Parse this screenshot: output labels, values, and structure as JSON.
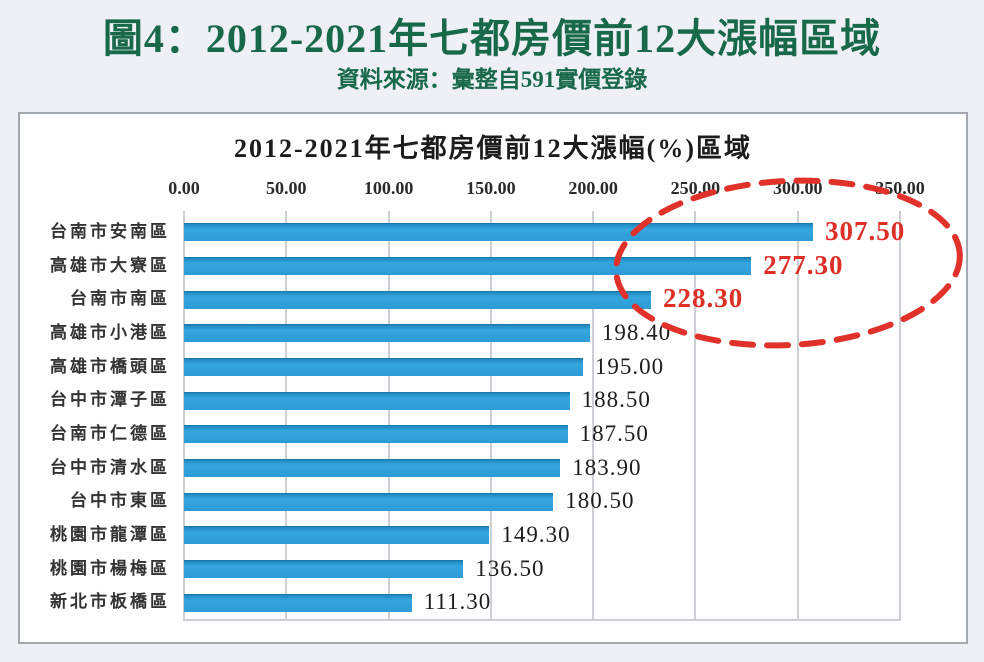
{
  "page": {
    "title": "圖4：2012-2021年七都房價前12大漲幅區域",
    "subtitle": "資料來源：彙整自591實價登錄",
    "title_color": "#17694a",
    "background_color": "#eef0f5"
  },
  "chart_data": {
    "type": "bar",
    "orientation": "horizontal",
    "title": "2012-2021年七都房價前12大漲幅(%)區域",
    "categories": [
      "台南市安南區",
      "高雄市大寮區",
      "台南市南區",
      "高雄市小港區",
      "高雄市橋頭區",
      "台中市潭子區",
      "台南市仁德區",
      "台中市清水區",
      "台中市東區",
      "桃園市龍潭區",
      "桃園市楊梅區",
      "新北市板橋區"
    ],
    "values": [
      307.5,
      277.3,
      228.3,
      198.4,
      195.0,
      188.5,
      187.5,
      183.9,
      180.5,
      149.3,
      136.5,
      111.3
    ],
    "value_labels": [
      "307.50",
      "277.30",
      "228.30",
      "198.40",
      "195.00",
      "188.50",
      "187.50",
      "183.90",
      "180.50",
      "149.30",
      "136.50",
      "111.30"
    ],
    "highlighted_indices": [
      0,
      1,
      2
    ],
    "xlim": [
      0,
      350
    ],
    "x_ticks": [
      "0.00",
      "50.00",
      "100.00",
      "150.00",
      "200.00",
      "250.00",
      "300.00",
      "350.00"
    ],
    "grid": true,
    "legend": "none",
    "bar_color": "#2d9bd5",
    "highlight_color": "#de2f27",
    "annotation": "red dashed ellipse circling the top three values"
  }
}
